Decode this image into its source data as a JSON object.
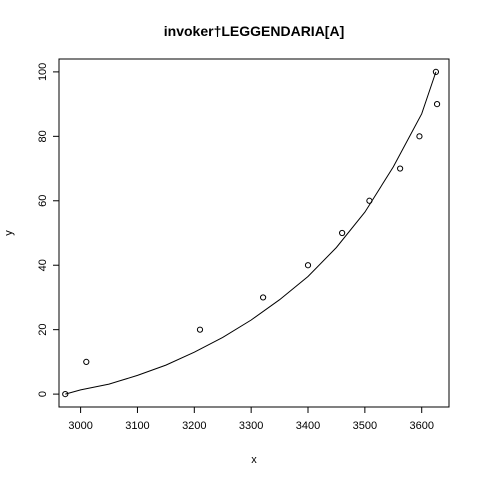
{
  "chart_data": {
    "type": "scatter",
    "title": "invoker†LEGGENDARIA[A]",
    "xlabel": "x",
    "ylabel": "y",
    "xlim": [
      2962,
      3648
    ],
    "ylim": [
      -4,
      104
    ],
    "x_ticks": [
      "3000",
      "3100",
      "3200",
      "3300",
      "3400",
      "3500",
      "3600"
    ],
    "y_ticks": [
      "0",
      "20",
      "40",
      "60",
      "80",
      "100"
    ],
    "grid": false,
    "legend": "none",
    "points": {
      "x": [
        2973,
        3010,
        3210,
        3321,
        3400,
        3460,
        3508,
        3562,
        3596,
        3627,
        3625
      ],
      "y": [
        0,
        10,
        20,
        30,
        40,
        50,
        60,
        70,
        80,
        90,
        100
      ]
    },
    "fit_line": {
      "x": [
        2973,
        3000,
        3050,
        3100,
        3150,
        3200,
        3250,
        3300,
        3350,
        3400,
        3450,
        3500,
        3550,
        3600,
        3625
      ],
      "y": [
        0,
        1.3,
        3.1,
        5.8,
        9.0,
        13.0,
        17.6,
        23.0,
        29.3,
        36.5,
        45.5,
        56.5,
        70.5,
        87.0,
        100
      ]
    }
  }
}
